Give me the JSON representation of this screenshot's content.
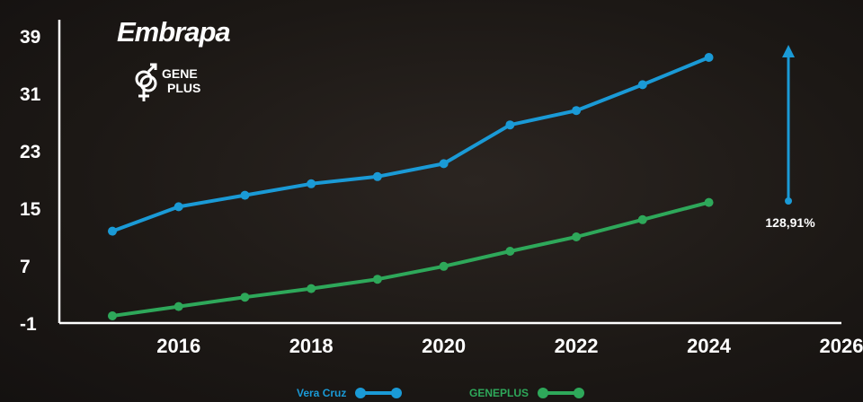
{
  "logo": {
    "brand": "Embrapa",
    "sub_line1": "GENE",
    "sub_line2": "PLUS"
  },
  "annotation": {
    "text": "128,91%",
    "color": "#1a9ad6"
  },
  "legend": {
    "items": [
      {
        "label": "Vera Cruz",
        "color": "#1a9ad6"
      },
      {
        "label": "GENEPLUS",
        "color": "#2ea85a"
      }
    ]
  },
  "chart_data": {
    "type": "line",
    "xlim": [
      2014.2,
      2026
    ],
    "ylim": [
      -1,
      39
    ],
    "xticks": [
      "2016",
      "2018",
      "2020",
      "2022",
      "2024",
      "2026"
    ],
    "yticks": [
      "39",
      "31",
      "23",
      "15",
      "7",
      "-1"
    ],
    "legend_position": "bottom-center",
    "grid": false,
    "series": [
      {
        "name": "Vera Cruz",
        "color": "#1a9ad6",
        "x": [
          2015,
          2016,
          2017,
          2018,
          2019,
          2020,
          2021,
          2022,
          2023,
          2024
        ],
        "y": [
          11.8,
          15.2,
          16.8,
          18.4,
          19.4,
          21.2,
          26.6,
          28.6,
          32.2,
          36.0
        ]
      },
      {
        "name": "GENEPLUS",
        "color": "#2ea85a",
        "x": [
          2015,
          2016,
          2017,
          2018,
          2019,
          2020,
          2021,
          2022,
          2023,
          2024
        ],
        "y": [
          0.0,
          1.3,
          2.6,
          3.8,
          5.1,
          6.9,
          9.0,
          11.0,
          13.4,
          15.8
        ]
      }
    ],
    "annotation_arrow": {
      "x": 2025.2,
      "from_y": 16.0,
      "to_y": 37.5,
      "text": "128,91%"
    }
  }
}
